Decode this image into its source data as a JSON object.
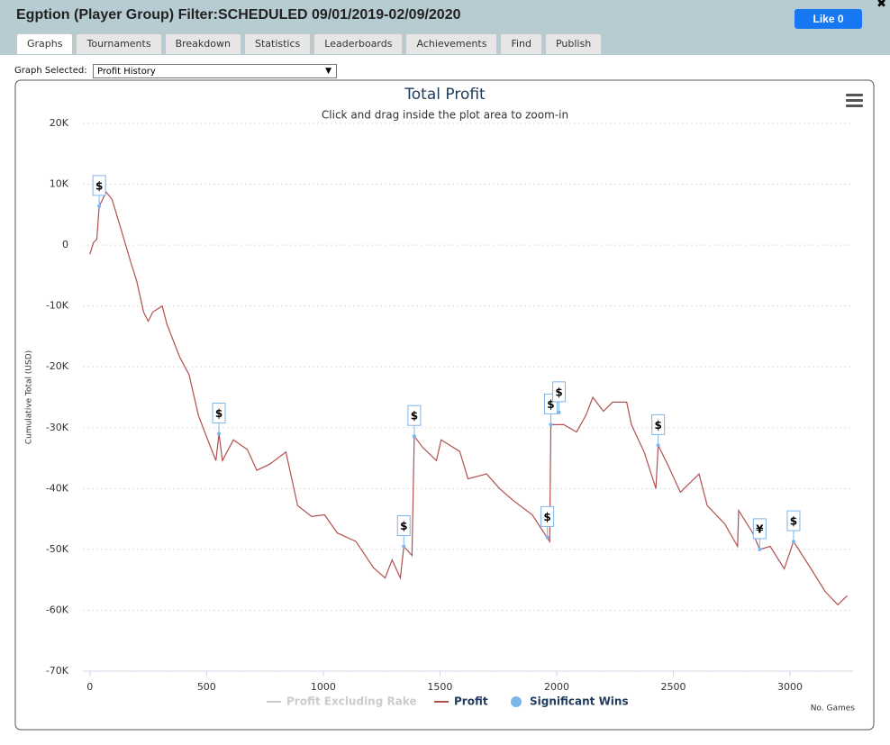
{
  "header": {
    "title": "Egption (Player Group) Filter:SCHEDULED 09/01/2019-02/09/2020",
    "like_button": "Like 0"
  },
  "tabs": [
    "Graphs",
    "Tournaments",
    "Breakdown",
    "Statistics",
    "Leaderboards",
    "Achievements",
    "Find",
    "Publish"
  ],
  "graph_selector": {
    "label": "Graph Selected:",
    "value": "Profit History"
  },
  "chart_data": {
    "type": "line",
    "title": "Total Profit",
    "subtitle": "Click and drag inside the plot area to zoom-in",
    "y_label": "Cumulative Total (USD)",
    "x_label": "No. Games",
    "xlim": [
      -30,
      3270
    ],
    "xticks": [
      0,
      500,
      1000,
      1500,
      2000,
      2500,
      3000
    ],
    "ylim": [
      -70000,
      20000
    ],
    "yticks": [
      {
        "value": 20000,
        "label": "20K"
      },
      {
        "value": 10000,
        "label": "10K"
      },
      0,
      {
        "value": -10000,
        "label": "-10K"
      },
      {
        "value": -20000,
        "label": "-20K"
      },
      {
        "value": -30000,
        "label": "-30K"
      },
      {
        "value": -40000,
        "label": "-40K"
      },
      {
        "value": -50000,
        "label": "-50K"
      },
      {
        "value": -60000,
        "label": "-60K"
      },
      {
        "value": -70000,
        "label": "-70K"
      }
    ],
    "grid": true,
    "series": [
      {
        "name": "Profit Excluding Rake",
        "color": "#cccccc",
        "visible": false
      },
      {
        "name": "Profit",
        "color": "#b05050",
        "x": [
          0,
          15,
          30,
          40,
          70,
          95,
          135,
          175,
          200,
          230,
          250,
          270,
          310,
          330,
          385,
          425,
          465,
          515,
          540,
          553,
          568,
          615,
          675,
          715,
          770,
          840,
          890,
          950,
          1005,
          1060,
          1140,
          1215,
          1265,
          1295,
          1330,
          1345,
          1380,
          1390,
          1425,
          1485,
          1505,
          1585,
          1620,
          1700,
          1755,
          1815,
          1895,
          1970,
          1975,
          2030,
          2085,
          2125,
          2155,
          2200,
          2240,
          2300,
          2320,
          2375,
          2425,
          2435,
          2475,
          2530,
          2610,
          2645,
          2720,
          2775,
          2780,
          2840,
          2870,
          2915,
          2975,
          3015,
          3090,
          3150,
          3205,
          3245
        ],
        "values": [
          -1500,
          400,
          1000,
          6400,
          8700,
          7500,
          2400,
          -2800,
          -5800,
          -11000,
          -12500,
          -11000,
          -10000,
          -13000,
          -18400,
          -21300,
          -28000,
          -33000,
          -35400,
          -31000,
          -35400,
          -32000,
          -33600,
          -37000,
          -36000,
          -34000,
          -42800,
          -44600,
          -44300,
          -47300,
          -48700,
          -53000,
          -54700,
          -51700,
          -54700,
          -49500,
          -51000,
          -31400,
          -33200,
          -35400,
          -32000,
          -33900,
          -38400,
          -37600,
          -40000,
          -42000,
          -44300,
          -48700,
          -29500,
          -29500,
          -30700,
          -28000,
          -25000,
          -27300,
          -25800,
          -25800,
          -29500,
          -34000,
          -40000,
          -32900,
          -36000,
          -40600,
          -37600,
          -42800,
          -45800,
          -49500,
          -43600,
          -47300,
          -50000,
          -49500,
          -53200,
          -48700,
          -53200,
          -56900,
          -59100,
          -57600
        ]
      },
      {
        "name": "Significant Wins",
        "color": "#7cb5ec",
        "x": [
          40,
          553,
          1345,
          1390,
          1960,
          1975,
          2010,
          2435,
          2870,
          3015
        ],
        "values": [
          6400,
          -31000,
          -49500,
          -31400,
          -48000,
          -29500,
          -27500,
          -32900,
          -50000,
          -48700
        ],
        "labels": [
          "$",
          "$",
          "$",
          "$",
          "$",
          "$",
          "$",
          "$",
          "¥",
          "$"
        ]
      }
    ]
  }
}
